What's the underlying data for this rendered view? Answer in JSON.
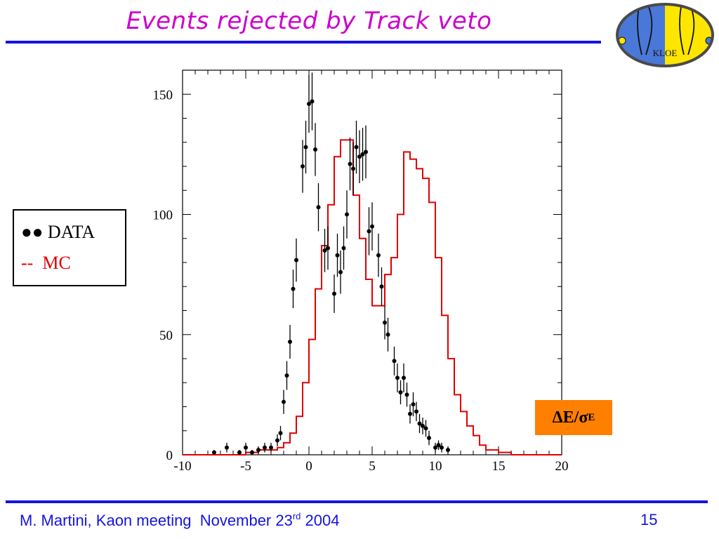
{
  "slide": {
    "title": "Events rejected by Track veto",
    "footer_prefix": "M. Martini, Kaon meeting  November 23",
    "footer_sup": "rd",
    "footer_suffix": " 2004",
    "page_number": "15"
  },
  "legend": {
    "data_marker": "●●",
    "data_label": "DATA",
    "mc_marker": "--",
    "mc_label": "MC"
  },
  "annotation": {
    "main": "ΔE/σ",
    "sub": "E"
  },
  "logo": {
    "text": "KLOE",
    "colors": {
      "left": "#4a78d8",
      "right": "#ffe600"
    }
  },
  "colors": {
    "title": "#cc00cc",
    "rule": "#1414e0",
    "mc_line": "#e00000",
    "data_point": "#000000",
    "annotation_box": "#ff7f00"
  },
  "chart_data": {
    "type": "histogram",
    "title": "",
    "xlabel": "",
    "ylabel": "",
    "xlim": [
      -10,
      20
    ],
    "ylim": [
      0,
      160
    ],
    "grid": false,
    "x_ticks": [
      -10,
      -5,
      0,
      5,
      10,
      15,
      20
    ],
    "y_ticks": [
      0,
      50,
      100,
      150
    ],
    "bin_width": 0.5,
    "series": [
      {
        "name": "MC",
        "style": "step",
        "x_start": -5,
        "values": [
          1,
          1,
          2,
          2,
          2,
          3,
          5,
          9,
          16,
          30,
          48,
          69,
          87,
          104,
          124,
          131,
          131,
          108,
          90,
          73,
          62,
          62,
          75,
          82,
          100,
          126,
          123,
          119,
          115,
          105,
          82,
          58,
          40,
          25,
          18,
          12,
          8,
          4,
          2,
          2,
          1,
          1
        ]
      },
      {
        "name": "DATA",
        "style": "points",
        "points": [
          {
            "x": -7.5,
            "y": 1,
            "err": 1
          },
          {
            "x": -6.5,
            "y": 3,
            "err": 2
          },
          {
            "x": -5.5,
            "y": 1,
            "err": 1
          },
          {
            "x": -5,
            "y": 3,
            "err": 2
          },
          {
            "x": -4.5,
            "y": 1,
            "err": 1
          },
          {
            "x": -4,
            "y": 2,
            "err": 1.5
          },
          {
            "x": -3.5,
            "y": 3,
            "err": 2
          },
          {
            "x": -3,
            "y": 3,
            "err": 2
          },
          {
            "x": -2.5,
            "y": 6,
            "err": 2.5
          },
          {
            "x": -2.25,
            "y": 9,
            "err": 3
          },
          {
            "x": -2,
            "y": 22,
            "err": 5
          },
          {
            "x": -1.75,
            "y": 33,
            "err": 6
          },
          {
            "x": -1.5,
            "y": 47,
            "err": 7
          },
          {
            "x": -1.25,
            "y": 69,
            "err": 8
          },
          {
            "x": -1,
            "y": 81,
            "err": 9
          },
          {
            "x": -0.5,
            "y": 120,
            "err": 11
          },
          {
            "x": -0.25,
            "y": 128,
            "err": 11
          },
          {
            "x": 0,
            "y": 146,
            "err": 12
          },
          {
            "x": 0.25,
            "y": 147,
            "err": 12
          },
          {
            "x": 0.5,
            "y": 127,
            "err": 11
          },
          {
            "x": 0.75,
            "y": 103,
            "err": 10
          },
          {
            "x": 1.25,
            "y": 85,
            "err": 9
          },
          {
            "x": 1.5,
            "y": 86,
            "err": 9
          },
          {
            "x": 2,
            "y": 67,
            "err": 8
          },
          {
            "x": 2.25,
            "y": 83,
            "err": 9
          },
          {
            "x": 2.5,
            "y": 76,
            "err": 9
          },
          {
            "x": 2.75,
            "y": 86,
            "err": 9
          },
          {
            "x": 3,
            "y": 100,
            "err": 10
          },
          {
            "x": 3.25,
            "y": 121,
            "err": 11
          },
          {
            "x": 3.5,
            "y": 119,
            "err": 11
          },
          {
            "x": 3.75,
            "y": 128,
            "err": 11
          },
          {
            "x": 4,
            "y": 124,
            "err": 11
          },
          {
            "x": 4.25,
            "y": 125,
            "err": 11
          },
          {
            "x": 4.5,
            "y": 126,
            "err": 11
          },
          {
            "x": 4.75,
            "y": 93,
            "err": 10
          },
          {
            "x": 5,
            "y": 95,
            "err": 10
          },
          {
            "x": 5.5,
            "y": 83,
            "err": 9
          },
          {
            "x": 5.75,
            "y": 70,
            "err": 8
          },
          {
            "x": 6,
            "y": 55,
            "err": 7
          },
          {
            "x": 6.25,
            "y": 50,
            "err": 7
          },
          {
            "x": 6.75,
            "y": 39,
            "err": 6
          },
          {
            "x": 7,
            "y": 32,
            "err": 6
          },
          {
            "x": 7.25,
            "y": 26,
            "err": 5
          },
          {
            "x": 7.5,
            "y": 32,
            "err": 6
          },
          {
            "x": 7.75,
            "y": 25,
            "err": 5
          },
          {
            "x": 8,
            "y": 17,
            "err": 4
          },
          {
            "x": 8.25,
            "y": 21,
            "err": 5
          },
          {
            "x": 8.5,
            "y": 18,
            "err": 4
          },
          {
            "x": 8.75,
            "y": 13,
            "err": 4
          },
          {
            "x": 9,
            "y": 12,
            "err": 3.5
          },
          {
            "x": 9.25,
            "y": 11,
            "err": 3.5
          },
          {
            "x": 9.5,
            "y": 7,
            "err": 3
          },
          {
            "x": 10,
            "y": 3,
            "err": 2
          },
          {
            "x": 10.25,
            "y": 4,
            "err": 2
          },
          {
            "x": 10.5,
            "y": 3,
            "err": 2
          },
          {
            "x": 11,
            "y": 2,
            "err": 1.5
          }
        ]
      }
    ]
  }
}
